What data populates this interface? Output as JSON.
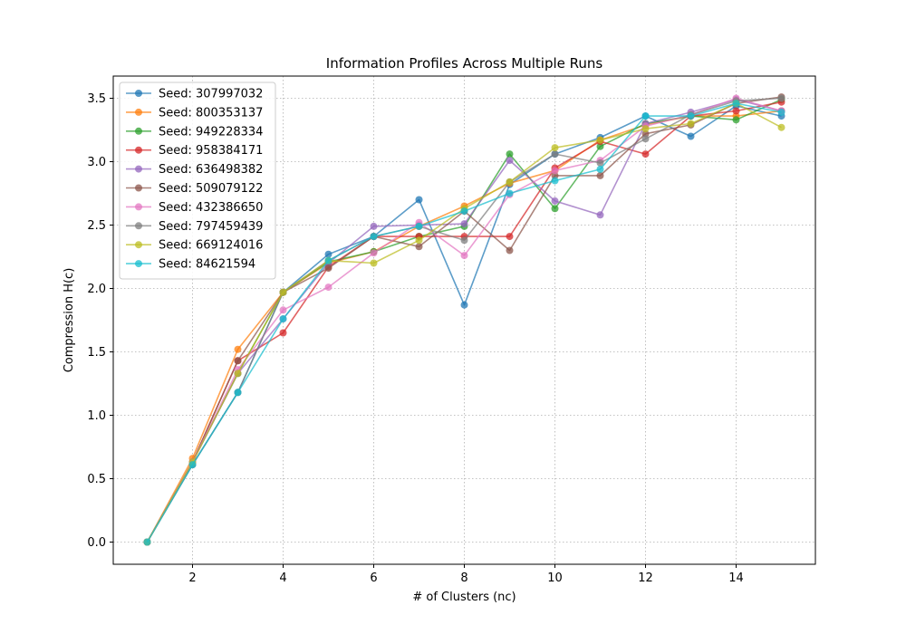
{
  "chart_data": {
    "type": "line",
    "title": "Information Profiles Across Multiple Runs",
    "xlabel": "# of Clusters (nc)",
    "ylabel": "Compression H(c)",
    "xlim": [
      0.25,
      15.75
    ],
    "ylim": [
      -0.175,
      3.675
    ],
    "xticks": [
      2,
      4,
      6,
      8,
      10,
      12,
      14
    ],
    "yticks": [
      0.0,
      0.5,
      1.0,
      1.5,
      2.0,
      2.5,
      3.0,
      3.5
    ],
    "grid": true,
    "legend_position": "upper-left",
    "x": [
      1,
      2,
      3,
      4,
      5,
      6,
      7,
      8,
      9,
      10,
      11,
      12,
      13,
      14,
      15
    ],
    "series": [
      {
        "name": "Seed: 307997032",
        "color": "#1f77b4",
        "values": [
          0.0,
          0.61,
          1.18,
          1.97,
          2.27,
          2.41,
          2.7,
          1.87,
          2.82,
          3.06,
          3.19,
          3.36,
          3.2,
          3.44,
          3.36
        ]
      },
      {
        "name": "Seed: 800353137",
        "color": "#ff7f0e",
        "values": [
          0.0,
          0.66,
          1.52,
          1.97,
          2.2,
          2.29,
          2.49,
          2.65,
          2.83,
          2.93,
          3.17,
          3.29,
          3.36,
          3.36,
          3.4
        ]
      },
      {
        "name": "Seed: 949228334",
        "color": "#2ca02c",
        "values": [
          0.0,
          0.63,
          1.33,
          1.97,
          2.21,
          2.29,
          2.41,
          2.49,
          3.06,
          2.63,
          3.12,
          3.3,
          3.36,
          3.33,
          3.49
        ]
      },
      {
        "name": "Seed: 958384171",
        "color": "#d62728",
        "values": [
          0.0,
          0.63,
          1.43,
          1.65,
          2.17,
          2.41,
          2.41,
          2.41,
          2.41,
          2.95,
          3.16,
          3.06,
          3.36,
          3.4,
          3.47
        ]
      },
      {
        "name": "Seed: 636498382",
        "color": "#9467bd",
        "values": [
          0.0,
          0.63,
          1.33,
          1.76,
          2.2,
          2.49,
          2.5,
          2.51,
          3.01,
          2.69,
          2.58,
          3.3,
          3.39,
          3.49,
          3.4
        ]
      },
      {
        "name": "Seed: 509079122",
        "color": "#8c564b",
        "values": [
          0.0,
          0.63,
          1.43,
          1.97,
          2.16,
          2.41,
          2.33,
          2.61,
          2.3,
          2.89,
          2.89,
          3.22,
          3.29,
          3.46,
          3.51
        ]
      },
      {
        "name": "Seed: 432386650",
        "color": "#e377c2",
        "values": [
          0.0,
          0.63,
          1.36,
          1.83,
          2.01,
          2.28,
          2.52,
          2.26,
          2.74,
          2.93,
          3.01,
          3.28,
          3.37,
          3.5,
          3.4
        ]
      },
      {
        "name": "Seed: 797459439",
        "color": "#7f7f7f",
        "values": [
          0.0,
          0.61,
          1.18,
          1.97,
          2.22,
          2.41,
          2.49,
          2.38,
          2.84,
          3.06,
          2.99,
          3.18,
          3.37,
          3.48,
          3.5
        ]
      },
      {
        "name": "Seed: 669124016",
        "color": "#bcbd22",
        "values": [
          0.0,
          0.63,
          1.33,
          1.97,
          2.22,
          2.2,
          2.38,
          2.63,
          2.84,
          3.11,
          3.17,
          3.26,
          3.3,
          3.46,
          3.27
        ]
      },
      {
        "name": "Seed: 84621594",
        "color": "#17becf",
        "values": [
          0.0,
          0.61,
          1.18,
          1.76,
          2.22,
          2.41,
          2.49,
          2.61,
          2.75,
          2.85,
          2.94,
          3.36,
          3.36,
          3.46,
          3.39
        ]
      }
    ]
  }
}
